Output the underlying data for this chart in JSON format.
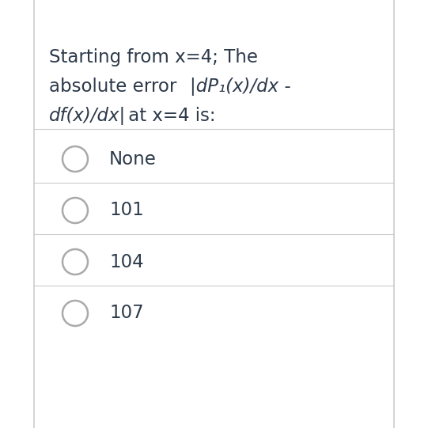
{
  "background_color": "#ffffff",
  "border_color": "#cccccc",
  "text_color": "#2d3a4a",
  "separator_color": "#cccccc",
  "circle_color": "#aaaaaa",
  "title_fontsize": 16.5,
  "option_fontsize": 16.5,
  "figsize": [
    5.41,
    5.41
  ],
  "dpi": 100,
  "options": [
    "None",
    "101",
    "104",
    "107"
  ]
}
